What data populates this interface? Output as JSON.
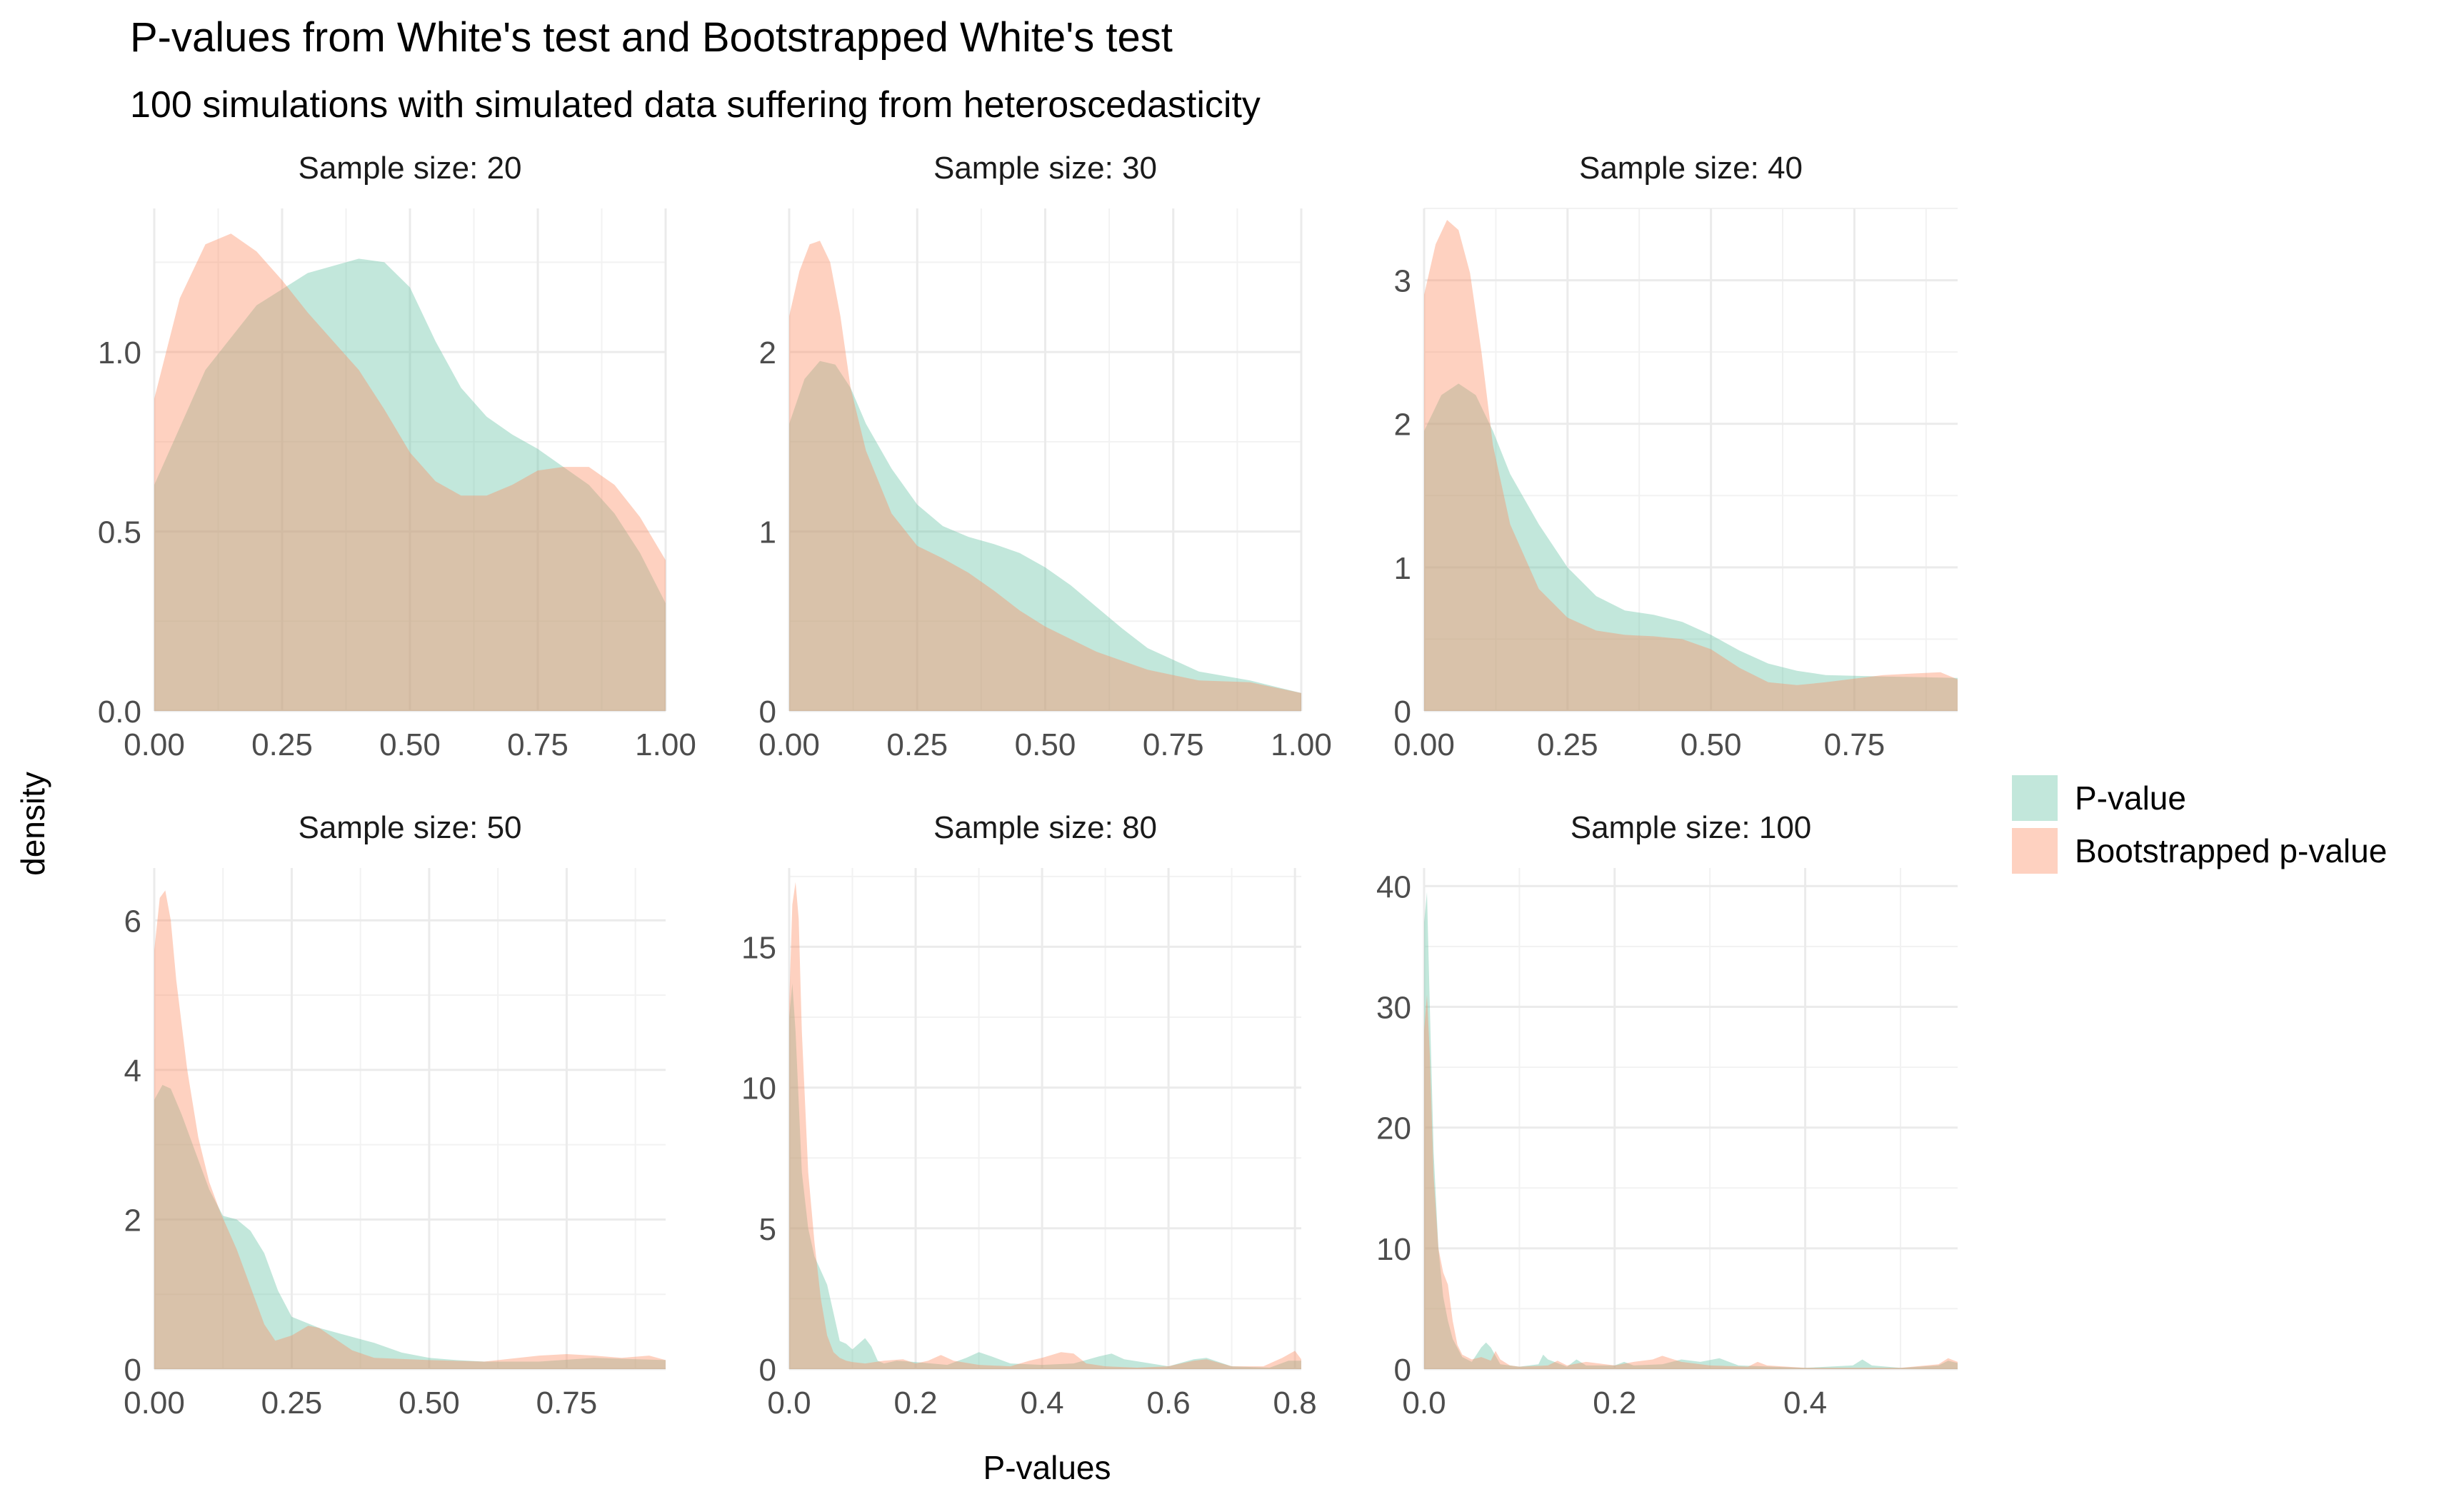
{
  "chart_data": {
    "type": "area",
    "subtype": "density",
    "title": "P-values from White's test and Bootstrapped White's test",
    "subtitle": "100 simulations with simulated data suffering from heteroscedasticity",
    "xlabel": "P-values",
    "ylabel": "density",
    "legend": {
      "placement": "right",
      "entries": [
        {
          "name": "P-value",
          "color": "#66C2A5"
        },
        {
          "name": "Bootstrapped p-value",
          "color": "#FC8D62"
        }
      ]
    },
    "fill_opacity": 0.4,
    "grid": true,
    "panels": [
      {
        "label": "Sample size: 20",
        "xlim": [
          0,
          1
        ],
        "ylim": [
          0,
          1.4
        ],
        "xticks": [
          0,
          0.25,
          0.5,
          0.75,
          1
        ],
        "xtick_labels": [
          "0.00",
          "0.25",
          "0.50",
          "0.75",
          "1.00"
        ],
        "yticks": [
          0,
          0.5,
          1.0
        ],
        "ytick_labels": [
          "0.0",
          "0.5",
          "1.0"
        ],
        "series": [
          {
            "name": "P-value",
            "x": [
              0,
              0.1,
              0.2,
              0.3,
              0.4,
              0.45,
              0.5,
              0.55,
              0.6,
              0.65,
              0.7,
              0.75,
              0.8,
              0.85,
              0.9,
              0.95,
              1.0
            ],
            "y": [
              0.63,
              0.95,
              1.13,
              1.22,
              1.26,
              1.25,
              1.18,
              1.03,
              0.9,
              0.82,
              0.77,
              0.73,
              0.68,
              0.63,
              0.55,
              0.44,
              0.3
            ]
          },
          {
            "name": "Bootstrapped p-value",
            "x": [
              0,
              0.05,
              0.1,
              0.15,
              0.2,
              0.25,
              0.3,
              0.35,
              0.4,
              0.45,
              0.5,
              0.55,
              0.6,
              0.65,
              0.7,
              0.75,
              0.8,
              0.85,
              0.9,
              0.95,
              1.0
            ],
            "y": [
              0.87,
              1.15,
              1.3,
              1.33,
              1.28,
              1.2,
              1.11,
              1.03,
              0.95,
              0.84,
              0.72,
              0.64,
              0.6,
              0.6,
              0.63,
              0.67,
              0.68,
              0.68,
              0.63,
              0.54,
              0.42
            ]
          }
        ]
      },
      {
        "label": "Sample size: 30",
        "xlim": [
          0,
          1
        ],
        "ylim": [
          0,
          2.8
        ],
        "xticks": [
          0,
          0.25,
          0.5,
          0.75,
          1
        ],
        "xtick_labels": [
          "0.00",
          "0.25",
          "0.50",
          "0.75",
          "1.00"
        ],
        "yticks": [
          0,
          1,
          2
        ],
        "ytick_labels": [
          "0",
          "1",
          "2"
        ],
        "series": [
          {
            "name": "P-value",
            "x": [
              0,
              0.03,
              0.06,
              0.09,
              0.12,
              0.15,
              0.2,
              0.25,
              0.3,
              0.35,
              0.4,
              0.45,
              0.5,
              0.55,
              0.6,
              0.65,
              0.7,
              0.8,
              0.9,
              1.0
            ],
            "y": [
              1.6,
              1.85,
              1.95,
              1.93,
              1.8,
              1.6,
              1.35,
              1.15,
              1.03,
              0.97,
              0.93,
              0.88,
              0.8,
              0.7,
              0.58,
              0.46,
              0.35,
              0.22,
              0.17,
              0.1
            ]
          },
          {
            "name": "Bootstrapped p-value",
            "x": [
              0,
              0.02,
              0.04,
              0.06,
              0.08,
              0.1,
              0.12,
              0.15,
              0.2,
              0.25,
              0.3,
              0.35,
              0.4,
              0.45,
              0.5,
              0.55,
              0.6,
              0.7,
              0.8,
              0.9,
              1.0
            ],
            "y": [
              2.2,
              2.45,
              2.6,
              2.62,
              2.5,
              2.2,
              1.8,
              1.45,
              1.1,
              0.92,
              0.85,
              0.77,
              0.67,
              0.56,
              0.47,
              0.4,
              0.33,
              0.23,
              0.17,
              0.16,
              0.1
            ]
          }
        ]
      },
      {
        "label": "Sample size: 40",
        "xlim": [
          0,
          0.93
        ],
        "ylim": [
          0,
          3.5
        ],
        "xticks": [
          0,
          0.25,
          0.5,
          0.75
        ],
        "xtick_labels": [
          "0.00",
          "0.25",
          "0.50",
          "0.75"
        ],
        "yticks": [
          0,
          1,
          2,
          3
        ],
        "ytick_labels": [
          "0",
          "1",
          "2",
          "3"
        ],
        "series": [
          {
            "name": "P-value",
            "x": [
              0,
              0.03,
              0.06,
              0.09,
              0.12,
              0.15,
              0.2,
              0.25,
              0.3,
              0.35,
              0.4,
              0.45,
              0.5,
              0.55,
              0.6,
              0.65,
              0.7,
              0.8,
              0.93
            ],
            "y": [
              1.95,
              2.2,
              2.28,
              2.2,
              1.95,
              1.65,
              1.3,
              1.0,
              0.8,
              0.7,
              0.67,
              0.62,
              0.53,
              0.42,
              0.33,
              0.28,
              0.25,
              0.24,
              0.23
            ]
          },
          {
            "name": "Bootstrapped p-value",
            "x": [
              0,
              0.02,
              0.04,
              0.06,
              0.08,
              0.1,
              0.12,
              0.15,
              0.2,
              0.25,
              0.3,
              0.35,
              0.4,
              0.45,
              0.5,
              0.55,
              0.6,
              0.65,
              0.7,
              0.8,
              0.9,
              0.93
            ],
            "y": [
              2.9,
              3.25,
              3.42,
              3.35,
              3.05,
              2.5,
              1.85,
              1.3,
              0.85,
              0.65,
              0.56,
              0.53,
              0.52,
              0.5,
              0.43,
              0.3,
              0.2,
              0.18,
              0.2,
              0.25,
              0.27,
              0.22
            ]
          }
        ]
      },
      {
        "label": "Sample size: 50",
        "xlim": [
          0,
          0.93
        ],
        "ylim": [
          0,
          6.7
        ],
        "xticks": [
          0,
          0.25,
          0.5,
          0.75
        ],
        "xtick_labels": [
          "0.00",
          "0.25",
          "0.50",
          "0.75"
        ],
        "yticks": [
          0,
          2,
          4,
          6
        ],
        "ytick_labels": [
          "0",
          "2",
          "4",
          "6"
        ],
        "series": [
          {
            "name": "P-value",
            "x": [
              0,
              0.015,
              0.03,
              0.05,
              0.075,
              0.1,
              0.125,
              0.15,
              0.175,
              0.2,
              0.225,
              0.25,
              0.3,
              0.35,
              0.4,
              0.45,
              0.5,
              0.55,
              0.6,
              0.7,
              0.8,
              0.93
            ],
            "y": [
              3.6,
              3.8,
              3.75,
              3.4,
              2.9,
              2.4,
              2.05,
              2.0,
              1.85,
              1.55,
              1.05,
              0.7,
              0.55,
              0.45,
              0.35,
              0.22,
              0.15,
              0.12,
              0.1,
              0.1,
              0.15,
              0.12
            ]
          },
          {
            "name": "Bootstrapped p-value",
            "x": [
              0,
              0.01,
              0.02,
              0.03,
              0.04,
              0.06,
              0.08,
              0.1,
              0.12,
              0.15,
              0.18,
              0.2,
              0.22,
              0.25,
              0.28,
              0.3,
              0.33,
              0.36,
              0.4,
              0.5,
              0.6,
              0.7,
              0.75,
              0.8,
              0.85,
              0.9,
              0.93
            ],
            "y": [
              5.6,
              6.3,
              6.4,
              6.0,
              5.2,
              4.0,
              3.1,
              2.5,
              2.1,
              1.6,
              1.0,
              0.6,
              0.38,
              0.45,
              0.58,
              0.55,
              0.4,
              0.25,
              0.15,
              0.12,
              0.1,
              0.18,
              0.2,
              0.18,
              0.15,
              0.18,
              0.12
            ]
          }
        ]
      },
      {
        "label": "Sample size: 80",
        "xlim": [
          0,
          0.81
        ],
        "ylim": [
          0,
          17.8
        ],
        "xticks": [
          0,
          0.2,
          0.4,
          0.6,
          0.8
        ],
        "xtick_labels": [
          "0.0",
          "0.2",
          "0.4",
          "0.6",
          "0.8"
        ],
        "yticks": [
          0,
          5,
          10,
          15
        ],
        "ytick_labels": [
          "0",
          "5",
          "10",
          "15"
        ],
        "series": [
          {
            "name": "P-value",
            "x": [
              0,
              0.005,
              0.01,
              0.02,
              0.03,
              0.04,
              0.05,
              0.06,
              0.07,
              0.08,
              0.09,
              0.1,
              0.11,
              0.12,
              0.13,
              0.14,
              0.15,
              0.17,
              0.2,
              0.25,
              0.28,
              0.3,
              0.32,
              0.35,
              0.4,
              0.45,
              0.49,
              0.51,
              0.53,
              0.6,
              0.64,
              0.66,
              0.7,
              0.76,
              0.79,
              0.81
            ],
            "y": [
              12.5,
              13.7,
              12.0,
              7.0,
              5.0,
              4.0,
              3.5,
              3.0,
              2.0,
              1.0,
              0.9,
              0.7,
              0.9,
              1.1,
              0.8,
              0.3,
              0.2,
              0.3,
              0.25,
              0.15,
              0.4,
              0.6,
              0.45,
              0.2,
              0.15,
              0.2,
              0.45,
              0.55,
              0.35,
              0.1,
              0.35,
              0.4,
              0.1,
              0.05,
              0.3,
              0.3
            ]
          },
          {
            "name": "Bootstrapped p-value",
            "x": [
              0,
              0.005,
              0.01,
              0.015,
              0.02,
              0.03,
              0.04,
              0.05,
              0.06,
              0.07,
              0.08,
              0.09,
              0.1,
              0.12,
              0.15,
              0.18,
              0.2,
              0.22,
              0.24,
              0.26,
              0.3,
              0.35,
              0.38,
              0.4,
              0.43,
              0.45,
              0.47,
              0.5,
              0.55,
              0.6,
              0.64,
              0.66,
              0.7,
              0.75,
              0.78,
              0.8,
              0.81
            ],
            "y": [
              13.0,
              16.5,
              17.3,
              16.0,
              12.0,
              7.0,
              4.5,
              2.5,
              1.2,
              0.6,
              0.4,
              0.3,
              0.25,
              0.2,
              0.3,
              0.35,
              0.2,
              0.3,
              0.5,
              0.3,
              0.15,
              0.1,
              0.3,
              0.4,
              0.6,
              0.55,
              0.2,
              0.1,
              0.05,
              0.1,
              0.3,
              0.35,
              0.1,
              0.1,
              0.4,
              0.65,
              0.35
            ]
          }
        ]
      },
      {
        "label": "Sample size: 100",
        "xlim": [
          0,
          0.56
        ],
        "ylim": [
          0,
          41.5
        ],
        "xticks": [
          0,
          0.2,
          0.4
        ],
        "xtick_labels": [
          "0.0",
          "0.2",
          "0.4"
        ],
        "yticks": [
          0,
          10,
          20,
          30,
          40
        ],
        "ytick_labels": [
          "0",
          "10",
          "20",
          "30",
          "40"
        ],
        "series": [
          {
            "name": "P-value",
            "x": [
              0,
              0.003,
              0.006,
              0.01,
              0.015,
              0.02,
              0.025,
              0.03,
              0.04,
              0.05,
              0.06,
              0.065,
              0.07,
              0.08,
              0.1,
              0.12,
              0.125,
              0.13,
              0.15,
              0.16,
              0.17,
              0.2,
              0.21,
              0.22,
              0.25,
              0.27,
              0.29,
              0.31,
              0.33,
              0.4,
              0.45,
              0.46,
              0.47,
              0.5,
              0.54,
              0.55,
              0.56
            ],
            "y": [
              37.0,
              39.5,
              30.0,
              18.0,
              10.0,
              6.0,
              4.0,
              2.5,
              1.0,
              0.6,
              1.8,
              2.2,
              1.8,
              0.4,
              0.2,
              0.4,
              1.2,
              0.8,
              0.2,
              0.8,
              0.3,
              0.3,
              0.6,
              0.3,
              0.4,
              0.8,
              0.6,
              0.9,
              0.3,
              0.1,
              0.3,
              0.8,
              0.3,
              0.1,
              0.3,
              0.7,
              0.5
            ]
          },
          {
            "name": "Bootstrapped p-value",
            "x": [
              0,
              0.003,
              0.006,
              0.01,
              0.015,
              0.02,
              0.025,
              0.03,
              0.035,
              0.04,
              0.05,
              0.06,
              0.07,
              0.075,
              0.08,
              0.09,
              0.1,
              0.13,
              0.14,
              0.15,
              0.17,
              0.2,
              0.22,
              0.24,
              0.25,
              0.27,
              0.3,
              0.34,
              0.35,
              0.36,
              0.4,
              0.45,
              0.5,
              0.54,
              0.55,
              0.56
            ],
            "y": [
              28.0,
              31.0,
              26.0,
              16.0,
              10.0,
              8.0,
              7.0,
              4.0,
              2.0,
              1.2,
              0.8,
              1.0,
              0.7,
              1.5,
              0.8,
              0.3,
              0.2,
              0.3,
              0.7,
              0.3,
              0.6,
              0.3,
              0.6,
              0.8,
              1.1,
              0.6,
              0.3,
              0.2,
              0.6,
              0.3,
              0.1,
              0.1,
              0.1,
              0.4,
              0.9,
              0.6
            ]
          }
        ]
      }
    ]
  }
}
